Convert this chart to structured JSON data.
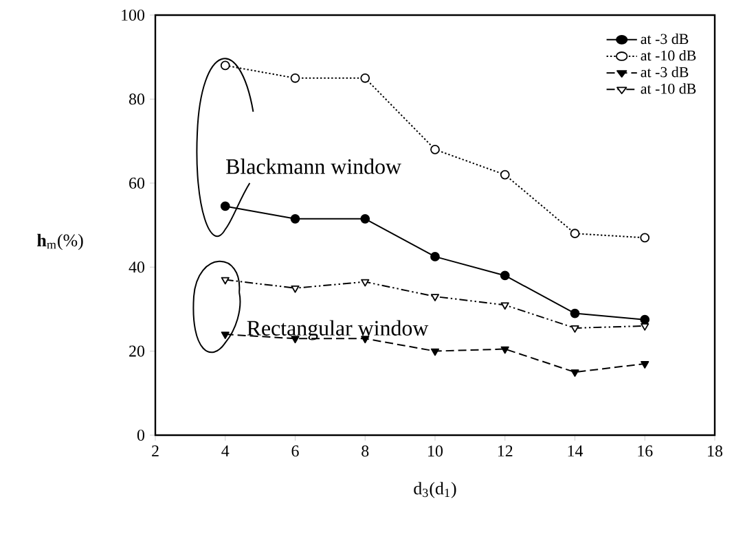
{
  "chart_data": {
    "type": "line",
    "xlabel": "d$_{3}$(d$_{1}$)",
    "ylabel": "**h**$_{m}$(%)",
    "x": [
      4,
      6,
      8,
      10,
      12,
      14,
      16
    ],
    "series": [
      {
        "name": "at -3 dB",
        "color": "#000000",
        "line_style": "solid",
        "marker": "circle",
        "values": [
          54.5,
          51.5,
          51.5,
          42.5,
          38,
          29,
          27.5
        ]
      },
      {
        "name": "at -10 dB",
        "color": "#000000",
        "line_style": "dotted",
        "marker": "circle-open",
        "values": [
          88,
          85,
          85,
          68,
          62,
          48,
          47
        ]
      },
      {
        "name": "at -3 dB",
        "color": "#000000",
        "line_style": "dashed",
        "marker": "triangle",
        "values": [
          24,
          23,
          23,
          20,
          20.5,
          15,
          17
        ]
      },
      {
        "name": "at -10 dB",
        "color": "#000000",
        "line_style": "dashdotted",
        "marker": "triangle-open",
        "values": [
          37,
          35,
          36.5,
          33,
          31,
          25.5,
          26
        ]
      }
    ],
    "annotations": [
      "Blackmann window",
      "Rectangular window"
    ],
    "xlim": [
      2,
      18
    ],
    "ylim": [
      0,
      100
    ],
    "xticks": [
      2,
      4,
      6,
      8,
      10,
      12,
      14,
      16,
      18
    ],
    "yticks": [
      0,
      20,
      40,
      60,
      80,
      100
    ],
    "legend": "top right"
  }
}
